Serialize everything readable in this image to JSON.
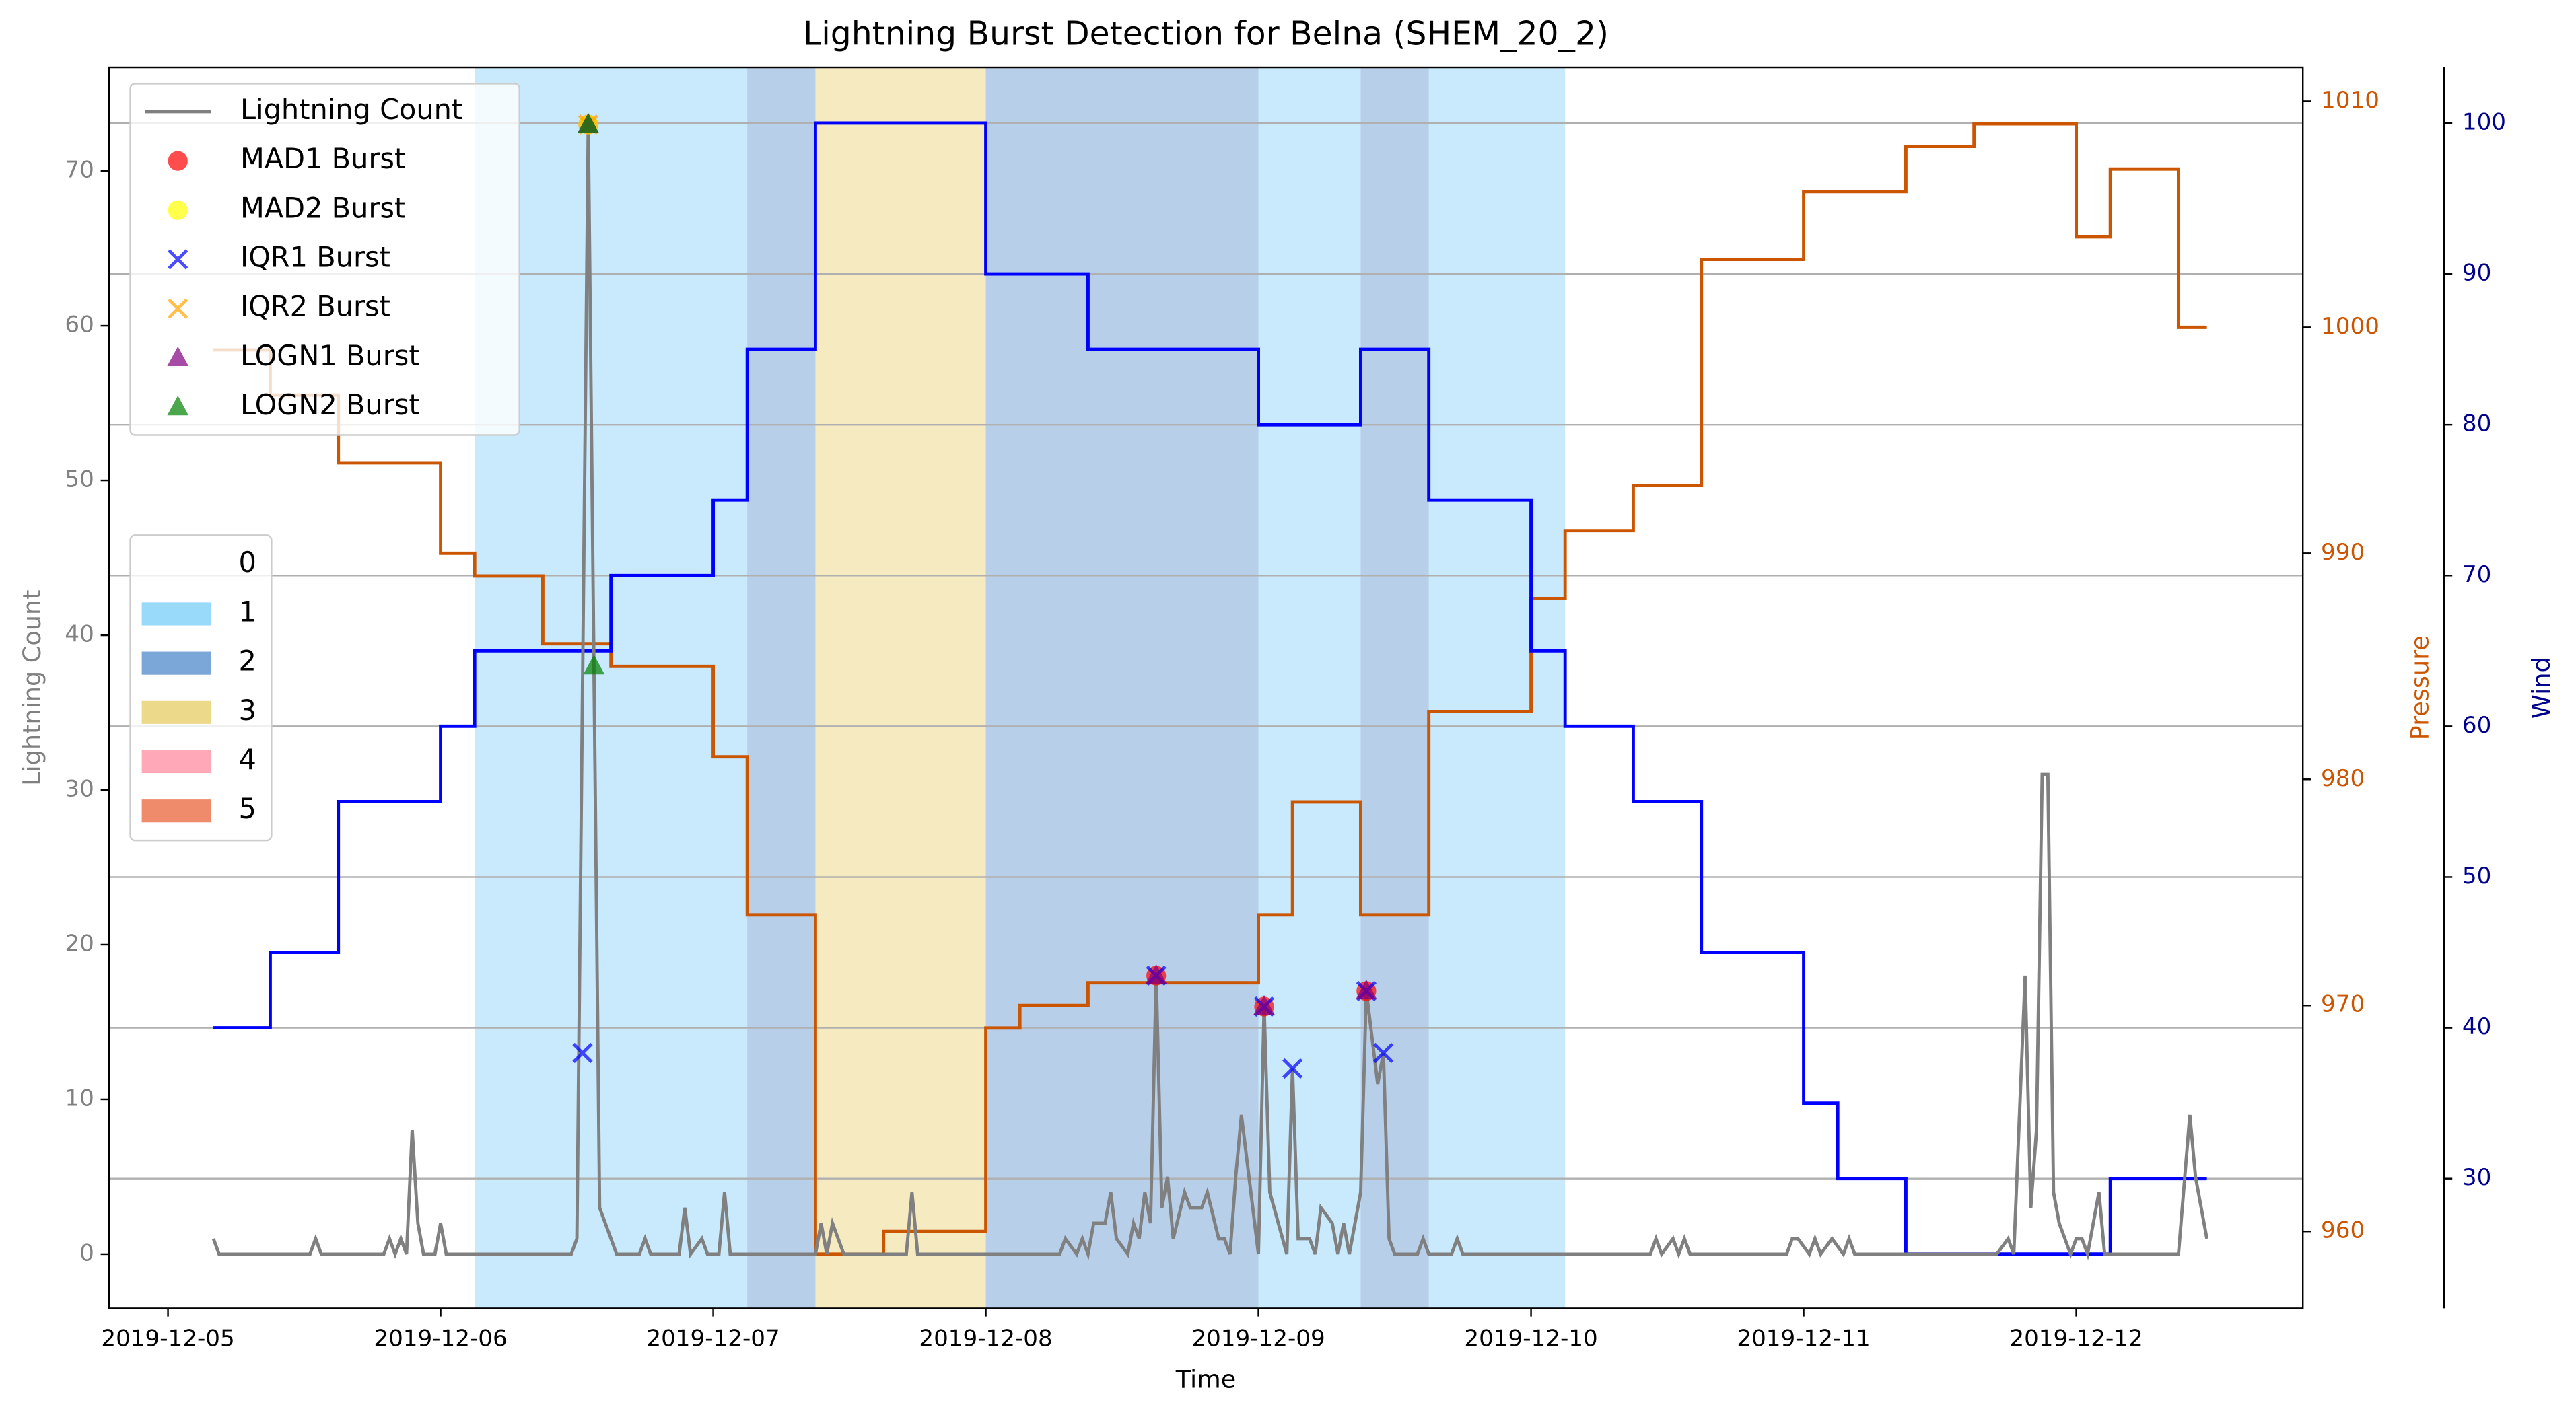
{
  "chart_data": {
    "type": "line",
    "title": "Lightning Burst Detection for Belna (SHEM_20_2)",
    "xlabel": "Time",
    "xlim": [
      "2019-12-04T18:48",
      "2019-12-12T19:57"
    ],
    "xticks": [
      "2019-12-05",
      "2019-12-06",
      "2019-12-07",
      "2019-12-08",
      "2019-12-09",
      "2019-12-10",
      "2019-12-11",
      "2019-12-12"
    ],
    "ylabel": "Lightning Count",
    "ylabel_color": "#808080",
    "ylim": [
      -3.5,
      76.7
    ],
    "yticks": [
      0,
      10,
      20,
      30,
      40,
      50,
      60,
      70
    ],
    "y2label": "Pressure",
    "y2label_color": "#cc5500",
    "y2lim": [
      956.6,
      1011.5
    ],
    "y2ticks": [
      960,
      970,
      980,
      990,
      1000,
      1010
    ],
    "y3label": "Wind",
    "y3label_color": "#00008b",
    "y3lim": [
      21.4,
      103.7
    ],
    "y3ticks": [
      30,
      40,
      50,
      60,
      70,
      80,
      90,
      100
    ],
    "grid": "y3",
    "legend_loc": "upper left",
    "category_legend_loc": "center left",
    "categories": [
      {
        "name": "0",
        "color": "none"
      },
      {
        "name": "1",
        "color": "#80cff7"
      },
      {
        "name": "2",
        "color": "#5a90ce"
      },
      {
        "name": "3",
        "color": "#e7cf6d"
      },
      {
        "name": "4",
        "color": "#ff92a6"
      },
      {
        "name": "5",
        "color": "#eb6d45"
      }
    ],
    "shading": [
      {
        "start": "2019-12-06T03:00",
        "end": "2019-12-07T03:00",
        "category": 1
      },
      {
        "start": "2019-12-07T03:00",
        "end": "2019-12-07T09:00",
        "category": 2
      },
      {
        "start": "2019-12-07T09:00",
        "end": "2019-12-08T00:00",
        "category": 3
      },
      {
        "start": "2019-12-08T00:00",
        "end": "2019-12-09T00:00",
        "category": 2
      },
      {
        "start": "2019-12-09T00:00",
        "end": "2019-12-09T09:00",
        "category": 1
      },
      {
        "start": "2019-12-09T09:00",
        "end": "2019-12-09T15:00",
        "category": 2
      },
      {
        "start": "2019-12-09T15:00",
        "end": "2019-12-10T03:00",
        "category": 1
      }
    ],
    "series": [
      {
        "axis": "y2",
        "type": "step",
        "color": "#cc5500",
        "x": [
          "2019-12-05T04:00",
          "2019-12-05T09:00",
          "2019-12-05T15:00",
          "2019-12-06T00:00",
          "2019-12-06T03:00",
          "2019-12-06T09:00",
          "2019-12-06T15:00",
          "2019-12-07T00:00",
          "2019-12-07T03:00",
          "2019-12-07T09:00",
          "2019-12-07T15:00",
          "2019-12-08T00:00",
          "2019-12-08T03:00",
          "2019-12-08T09:00",
          "2019-12-09T00:00",
          "2019-12-09T03:00",
          "2019-12-09T09:00",
          "2019-12-09T15:00",
          "2019-12-10T00:00",
          "2019-12-10T03:00",
          "2019-12-10T09:00",
          "2019-12-10T15:00",
          "2019-12-11T00:00",
          "2019-12-11T09:00",
          "2019-12-11T15:00",
          "2019-12-12T00:00",
          "2019-12-12T03:00",
          "2019-12-12T09:00",
          "2019-12-12T11:30"
        ],
        "values": [
          999,
          997,
          994,
          990,
          989,
          986,
          985,
          981,
          974,
          959,
          960,
          969,
          970,
          971,
          974,
          979,
          974,
          983,
          988,
          991,
          993,
          1003,
          1006,
          1008,
          1009,
          1004,
          1007,
          1000,
          1000
        ]
      },
      {
        "axis": "y3",
        "type": "step",
        "color": "#0000ff",
        "x": [
          "2019-12-05T04:00",
          "2019-12-05T09:00",
          "2019-12-05T15:00",
          "2019-12-06T00:00",
          "2019-12-06T03:00",
          "2019-12-06T15:00",
          "2019-12-07T00:00",
          "2019-12-07T03:00",
          "2019-12-07T09:00",
          "2019-12-08T00:00",
          "2019-12-08T09:00",
          "2019-12-09T00:00",
          "2019-12-09T09:00",
          "2019-12-09T15:00",
          "2019-12-10T00:00",
          "2019-12-10T03:00",
          "2019-12-10T09:00",
          "2019-12-10T15:00",
          "2019-12-11T00:00",
          "2019-12-11T03:00",
          "2019-12-11T09:00",
          "2019-12-12T03:00",
          "2019-12-12T11:30"
        ],
        "values": [
          40,
          45,
          55,
          60,
          65,
          70,
          75,
          85,
          100,
          90,
          85,
          80,
          85,
          75,
          65,
          60,
          55,
          45,
          35,
          30,
          25,
          30,
          30
        ]
      },
      {
        "name": "Lightning Count",
        "axis": "y",
        "type": "line",
        "color": "#808080",
        "x": [
          "2019-12-05T04:00",
          "2019-12-05T04:30",
          "2019-12-05T12:30",
          "2019-12-05T13:00",
          "2019-12-05T13:30",
          "2019-12-05T19:00",
          "2019-12-05T19:30",
          "2019-12-05T20:00",
          "2019-12-05T20:30",
          "2019-12-05T21:00",
          "2019-12-05T21:30",
          "2019-12-05T22:00",
          "2019-12-05T22:30",
          "2019-12-05T23:30",
          "2019-12-06T00:00",
          "2019-12-06T00:30",
          "2019-12-06T11:30",
          "2019-12-06T12:00",
          "2019-12-06T13:00",
          "2019-12-06T13:30",
          "2019-12-06T14:00",
          "2019-12-06T15:30",
          "2019-12-06T17:30",
          "2019-12-06T18:00",
          "2019-12-06T18:30",
          "2019-12-06T21:00",
          "2019-12-06T21:30",
          "2019-12-06T22:00",
          "2019-12-06T23:00",
          "2019-12-06T23:30",
          "2019-12-07T00:30",
          "2019-12-07T01:00",
          "2019-12-07T01:30",
          "2019-12-07T09:00",
          "2019-12-07T09:30",
          "2019-12-07T10:00",
          "2019-12-07T10:30",
          "2019-12-07T11:30",
          "2019-12-07T17:00",
          "2019-12-07T17:30",
          "2019-12-07T18:00",
          "2019-12-08T06:30",
          "2019-12-08T07:00",
          "2019-12-08T08:00",
          "2019-12-08T08:30",
          "2019-12-08T09:00",
          "2019-12-08T09:30",
          "2019-12-08T10:30",
          "2019-12-08T11:00",
          "2019-12-08T11:30",
          "2019-12-08T12:30",
          "2019-12-08T13:00",
          "2019-12-08T13:30",
          "2019-12-08T14:00",
          "2019-12-08T14:30",
          "2019-12-08T15:00",
          "2019-12-08T15:30",
          "2019-12-08T16:00",
          "2019-12-08T16:30",
          "2019-12-08T17:30",
          "2019-12-08T18:00",
          "2019-12-08T19:00",
          "2019-12-08T19:30",
          "2019-12-08T20:30",
          "2019-12-08T21:00",
          "2019-12-08T21:30",
          "2019-12-08T22:00",
          "2019-12-08T22:30",
          "2019-12-08T23:30",
          "2019-12-09T00:00",
          "2019-12-09T00:30",
          "2019-12-09T01:00",
          "2019-12-09T02:30",
          "2019-12-09T03:00",
          "2019-12-09T03:30",
          "2019-12-09T04:30",
          "2019-12-09T05:00",
          "2019-12-09T05:30",
          "2019-12-09T06:30",
          "2019-12-09T07:00",
          "2019-12-09T07:30",
          "2019-12-09T08:00",
          "2019-12-09T09:00",
          "2019-12-09T09:30",
          "2019-12-09T10:30",
          "2019-12-09T11:00",
          "2019-12-09T11:30",
          "2019-12-09T12:00",
          "2019-12-09T14:00",
          "2019-12-09T14:30",
          "2019-12-09T15:00",
          "2019-12-09T17:00",
          "2019-12-09T17:30",
          "2019-12-09T18:00",
          "2019-12-10T10:30",
          "2019-12-10T11:00",
          "2019-12-10T11:30",
          "2019-12-10T12:30",
          "2019-12-10T13:00",
          "2019-12-10T13:30",
          "2019-12-10T14:00",
          "2019-12-10T22:30",
          "2019-12-10T23:00",
          "2019-12-10T23:30",
          "2019-12-11T00:30",
          "2019-12-11T01:00",
          "2019-12-11T01:30",
          "2019-12-11T02:30",
          "2019-12-11T03:30",
          "2019-12-11T04:00",
          "2019-12-11T04:30",
          "2019-12-11T17:00",
          "2019-12-11T18:00",
          "2019-12-11T18:30",
          "2019-12-11T19:30",
          "2019-12-11T20:00",
          "2019-12-11T20:30",
          "2019-12-11T21:00",
          "2019-12-11T21:30",
          "2019-12-11T22:00",
          "2019-12-11T22:30",
          "2019-12-11T23:00",
          "2019-12-11T23:30",
          "2019-12-12T00:00",
          "2019-12-12T00:30",
          "2019-12-12T01:00",
          "2019-12-12T02:00",
          "2019-12-12T02:30",
          "2019-12-12T09:00",
          "2019-12-12T10:00",
          "2019-12-12T10:30",
          "2019-12-12T11:30"
        ],
        "values": [
          1,
          0,
          0,
          1,
          0,
          0,
          1,
          0,
          1,
          0,
          8,
          2,
          0,
          0,
          2,
          0,
          0,
          1,
          73,
          38,
          3,
          0,
          0,
          1,
          0,
          0,
          3,
          0,
          1,
          0,
          0,
          4,
          0,
          0,
          2,
          0,
          2,
          0,
          0,
          4,
          0,
          0,
          1,
          0,
          1,
          0,
          2,
          2,
          4,
          1,
          0,
          2,
          1,
          4,
          2,
          18,
          3,
          5,
          1,
          4,
          3,
          3,
          4,
          1,
          1,
          0,
          5,
          9,
          3,
          0,
          16,
          4,
          0,
          12,
          1,
          1,
          0,
          3,
          2,
          0,
          2,
          0,
          4,
          17,
          11,
          13,
          1,
          0,
          0,
          1,
          0,
          0,
          1,
          0,
          0,
          1,
          0,
          1,
          0,
          1,
          0,
          0,
          1,
          1,
          0,
          1,
          0,
          1,
          0,
          1,
          0,
          0,
          1,
          0,
          18,
          3,
          8,
          31,
          31,
          4,
          2,
          1,
          0,
          1,
          1,
          0,
          4,
          0,
          0,
          9,
          5,
          1
        ]
      },
      {
        "name": "MAD1 Burst",
        "axis": "y",
        "type": "scatter",
        "marker": "o",
        "color": "#ff0000",
        "x": [
          "2019-12-06T13:00",
          "2019-12-08T15:00",
          "2019-12-09T00:30",
          "2019-12-09T09:30"
        ],
        "values": [
          73,
          18,
          16,
          17
        ]
      },
      {
        "name": "MAD2 Burst",
        "axis": "y",
        "type": "scatter",
        "marker": "o",
        "color": "#ffff00",
        "x": [
          "2019-12-06T13:00"
        ],
        "values": [
          73
        ]
      },
      {
        "name": "IQR1 Burst",
        "axis": "y",
        "type": "scatter",
        "marker": "x",
        "color": "#0000ff",
        "x": [
          "2019-12-06T12:30",
          "2019-12-08T15:00",
          "2019-12-09T00:30",
          "2019-12-09T03:00",
          "2019-12-09T09:30",
          "2019-12-09T11:00"
        ],
        "values": [
          13,
          18,
          16,
          12,
          17,
          13
        ]
      },
      {
        "name": "IQR2 Burst",
        "axis": "y",
        "type": "scatter",
        "marker": "x",
        "color": "#ffa500",
        "x": [
          "2019-12-06T13:00"
        ],
        "values": [
          73
        ]
      },
      {
        "name": "LOGN1 Burst",
        "axis": "y",
        "type": "scatter",
        "marker": "^",
        "color": "#800080",
        "x": [
          "2019-12-06T13:00",
          "2019-12-08T15:00",
          "2019-12-09T00:30",
          "2019-12-09T09:30"
        ],
        "values": [
          73,
          18,
          16,
          17
        ]
      },
      {
        "name": "LOGN2 Burst",
        "axis": "y",
        "type": "scatter",
        "marker": "^",
        "color": "#008000",
        "x": [
          "2019-12-06T13:00",
          "2019-12-06T13:30"
        ],
        "values": [
          73,
          38
        ]
      }
    ]
  }
}
